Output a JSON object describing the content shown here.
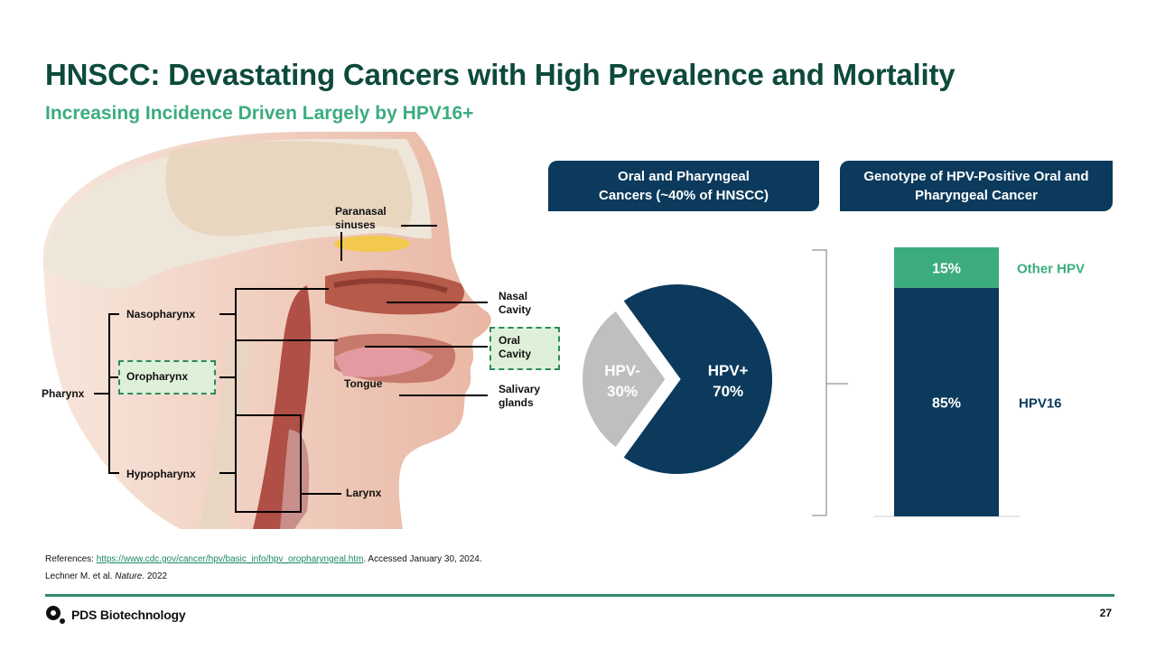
{
  "title": "HNSCC: Devastating Cancers with High Prevalence and Mortality",
  "subtitle": "Increasing Incidence Driven Largely by HPV16+",
  "anatomy": {
    "paranasal": [
      "Paranasal",
      "sinuses"
    ],
    "nasal_cavity": [
      "Nasal",
      "Cavity"
    ],
    "oral_cavity": [
      "Oral",
      "Cavity"
    ],
    "tongue": "Tongue",
    "salivary": [
      "Salivary",
      "glands"
    ],
    "larynx": "Larynx",
    "pharynx": "Pharynx",
    "nasopharynx": "Nasopharynx",
    "oropharynx": "Oropharynx",
    "hypopharynx": "Hypopharynx"
  },
  "headers": {
    "pie": [
      "Oral and Pharyngeal",
      "Cancers (~40% of HNSCC)"
    ],
    "bar": [
      "Genotype of HPV-Positive Oral and",
      "Pharyngeal Cancer"
    ]
  },
  "chart_data": [
    {
      "type": "pie",
      "slices": [
        {
          "label": "HPV+",
          "value": 70,
          "display": "70%",
          "color": "#0b3a5c"
        },
        {
          "label": "HPV-",
          "value": 30,
          "display": "30%",
          "color": "#bfbfbf"
        }
      ]
    },
    {
      "type": "bar",
      "stacked": true,
      "categories": [
        ""
      ],
      "series": [
        {
          "name": "HPV16",
          "values": [
            85
          ],
          "display": "85%",
          "color": "#0b3a5c"
        },
        {
          "name": "Other HPV",
          "values": [
            15
          ],
          "display": "15%",
          "color": "#3cac7f"
        }
      ],
      "ylim": [
        0,
        100
      ]
    }
  ],
  "references": {
    "prefix": "References: ",
    "link": "https://www.cdc.gov/cancer/hpv/basic_info/hpv_oropharyngeal.htm",
    "suffix": ". Accessed January 30, 2024.",
    "line2_a": "Lechner M. et al. ",
    "line2_journal": "Nature",
    "line2_b": ". 2022"
  },
  "footer": {
    "company": "PDS Biotechnology",
    "page": "27",
    "accent": "#2e8a69"
  }
}
